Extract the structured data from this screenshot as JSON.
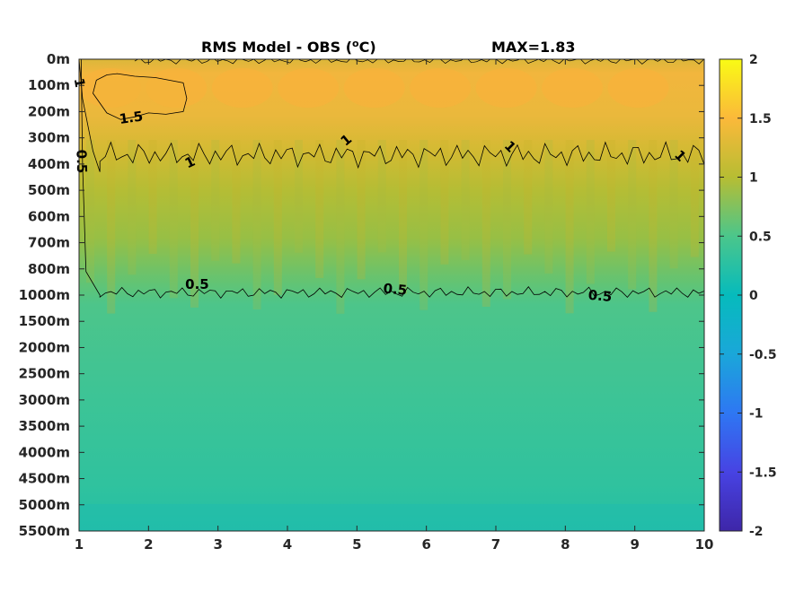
{
  "chart_data": {
    "type": "heatmap",
    "title": "RMS Model - OBS (°C)",
    "title_main": "RMS Model - OBS (",
    "title_unit_sup": "o",
    "title_unit_tail": "C)",
    "max_label": "MAX=1.83",
    "max_value": 1.83,
    "x_ticks": [
      "1",
      "2",
      "3",
      "4",
      "5",
      "6",
      "7",
      "8",
      "9",
      "10"
    ],
    "x_range": [
      1,
      10
    ],
    "y_ticks": [
      "0m",
      "100m",
      "200m",
      "300m",
      "400m",
      "500m",
      "600m",
      "700m",
      "800m",
      "1000m",
      "1500m",
      "2000m",
      "2500m",
      "3000m",
      "3500m",
      "4000m",
      "4500m",
      "5000m",
      "5500m"
    ],
    "colorbar": {
      "range": [
        -2,
        2
      ],
      "ticks": [
        "2",
        "1.5",
        "1",
        "0.5",
        "0",
        "-0.5",
        "-1",
        "-1.5",
        "-2"
      ],
      "colormap": "parula"
    },
    "depth_profile": {
      "depths": [
        "0m",
        "100m",
        "200m",
        "300m",
        "400m",
        "500m",
        "600m",
        "700m",
        "800m",
        "1000m",
        "1500m",
        "2000m",
        "2500m",
        "3000m",
        "3500m",
        "4000m",
        "4500m",
        "5000m",
        "5500m"
      ],
      "rms": [
        1.2,
        1.45,
        1.4,
        1.25,
        1.0,
        0.9,
        0.85,
        0.8,
        0.65,
        0.5,
        0.4,
        0.38,
        0.37,
        0.36,
        0.35,
        0.33,
        0.32,
        0.3,
        0.25
      ]
    },
    "contours": [
      {
        "level": 1.5,
        "label": "1.5"
      },
      {
        "level": 1,
        "label": "1"
      },
      {
        "level": 0.5,
        "label": "0.5"
      }
    ],
    "contour_labels": [
      {
        "text": "1",
        "x": 1.0,
        "depth_index": 0.9,
        "rotate": 80
      },
      {
        "text": "1.5",
        "x": 1.75,
        "depth_index": 2.25,
        "rotate": -8
      },
      {
        "text": "0.5",
        "x": 1.03,
        "depth_index": 3.9,
        "rotate": 88
      },
      {
        "text": "1",
        "x": 2.6,
        "depth_index": 3.95,
        "rotate": -25
      },
      {
        "text": "1",
        "x": 4.85,
        "depth_index": 3.1,
        "rotate": -40
      },
      {
        "text": "1",
        "x": 7.2,
        "depth_index": 3.35,
        "rotate": 45
      },
      {
        "text": "1",
        "x": 9.65,
        "depth_index": 3.7,
        "rotate": 45
      },
      {
        "text": "0.5",
        "x": 2.7,
        "depth_index": 8.6,
        "rotate": 0
      },
      {
        "text": "0.5",
        "x": 5.55,
        "depth_index": 8.8,
        "rotate": 5
      },
      {
        "text": "0.5",
        "x": 8.5,
        "depth_index": 9.05,
        "rotate": 5
      }
    ]
  }
}
